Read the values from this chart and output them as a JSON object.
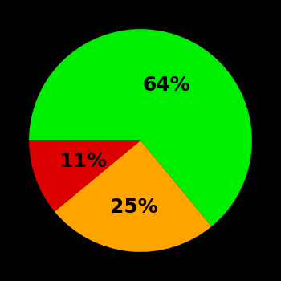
{
  "slices": [
    64,
    25,
    11
  ],
  "colors": [
    "#00ee00",
    "#ffa500",
    "#dd0000"
  ],
  "labels": [
    "64%",
    "25%",
    "11%"
  ],
  "background_color": "#000000",
  "label_fontsize": 18,
  "label_fontweight": "bold",
  "startangle": 180,
  "counterclock": false,
  "label_radii": [
    0.55,
    0.6,
    0.55
  ]
}
